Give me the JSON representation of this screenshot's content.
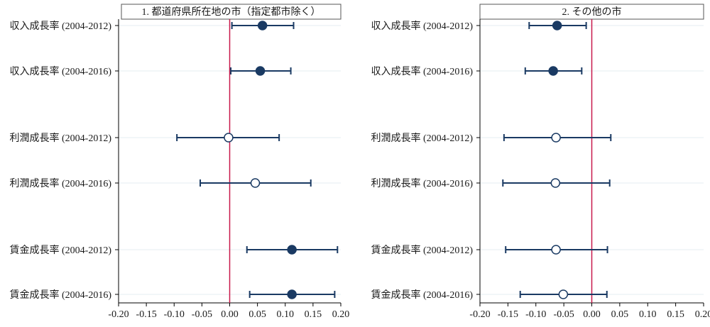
{
  "colors": {
    "marker": "#1a3a63",
    "zero_line": "#c8184a",
    "grid": "#e6ecf2",
    "frame": "#000000",
    "title_box": "#ffffff"
  },
  "chart_data": [
    {
      "type": "scatter",
      "subtype": "coefficient-plot",
      "title": "1. 都道府県所在地の市（指定都市除く）",
      "xlim": [
        -0.2,
        0.2
      ],
      "xticks": [
        -0.2,
        -0.15,
        -0.1,
        -0.05,
        0.0,
        0.05,
        0.1,
        0.15,
        0.2
      ],
      "xtick_labels": [
        "-0.20",
        "-0.15",
        "-0.10",
        "-0.05",
        "0.00",
        "0.05",
        "0.10",
        "0.15",
        "0.20"
      ],
      "reference_line": 0,
      "rows": [
        {
          "label": "収入成長率 (2004-2012)",
          "estimate": 0.059,
          "ci_low": 0.004,
          "ci_high": 0.115,
          "filled": true
        },
        {
          "label": "収入成長率 (2004-2016)",
          "estimate": 0.055,
          "ci_low": 0.002,
          "ci_high": 0.11,
          "filled": true
        },
        {
          "label": "利潤成長率 (2004-2012)",
          "estimate": -0.002,
          "ci_low": -0.095,
          "ci_high": 0.089,
          "filled": false
        },
        {
          "label": "利潤成長率 (2004-2016)",
          "estimate": 0.046,
          "ci_low": -0.053,
          "ci_high": 0.146,
          "filled": false
        },
        {
          "label": "賃金成長率 (2004-2012)",
          "estimate": 0.112,
          "ci_low": 0.031,
          "ci_high": 0.194,
          "filled": true
        },
        {
          "label": "賃金成長率 (2004-2016)",
          "estimate": 0.112,
          "ci_low": 0.036,
          "ci_high": 0.189,
          "filled": true
        }
      ]
    },
    {
      "type": "scatter",
      "subtype": "coefficient-plot",
      "title": "2. その他の市",
      "xlim": [
        -0.2,
        0.2
      ],
      "xticks": [
        -0.2,
        -0.15,
        -0.1,
        -0.05,
        0.0,
        0.05,
        0.1,
        0.15,
        0.2
      ],
      "xtick_labels": [
        "-0.20",
        "-0.15",
        "-0.10",
        "-0.05",
        "0.00",
        "0.05",
        "0.10",
        "0.15",
        "0.20"
      ],
      "reference_line": 0,
      "rows": [
        {
          "label": "収入成長率 (2004-2012)",
          "estimate": -0.062,
          "ci_low": -0.112,
          "ci_high": -0.01,
          "filled": true
        },
        {
          "label": "収入成長率 (2004-2016)",
          "estimate": -0.069,
          "ci_low": -0.119,
          "ci_high": -0.018,
          "filled": true
        },
        {
          "label": "利潤成長率 (2004-2012)",
          "estimate": -0.064,
          "ci_low": -0.157,
          "ci_high": 0.034,
          "filled": false
        },
        {
          "label": "利潤成長率 (2004-2016)",
          "estimate": -0.065,
          "ci_low": -0.159,
          "ci_high": 0.032,
          "filled": false
        },
        {
          "label": "賃金成長率 (2004-2012)",
          "estimate": -0.064,
          "ci_low": -0.154,
          "ci_high": 0.028,
          "filled": false
        },
        {
          "label": "賃金成長率 (2004-2016)",
          "estimate": -0.051,
          "ci_low": -0.128,
          "ci_high": 0.027,
          "filled": false
        }
      ]
    }
  ]
}
